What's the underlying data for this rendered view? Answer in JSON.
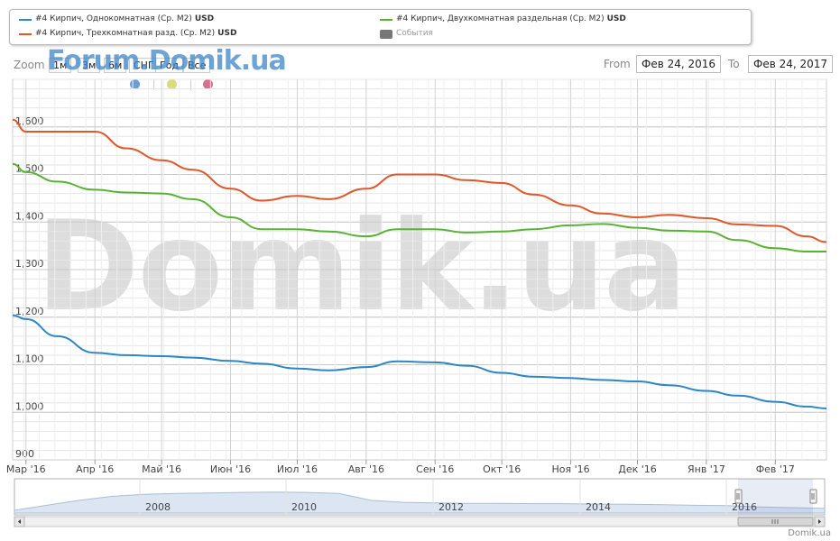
{
  "legend": [
    {
      "label": "#4 Кирпич, Однокомнатная (Ср. M2)",
      "unit": "USD",
      "color": "#2f86c4"
    },
    {
      "label": "#4 Кирпич, Двухкомнатная раздельная (Ср. M2)",
      "unit": "USD",
      "color": "#5ab235"
    },
    {
      "label": "#4 Кирпич, Трехкомнатная разд. (Ср. M2)",
      "unit": "USD",
      "color": "#e0572a"
    },
    {
      "label": "События",
      "unit": "",
      "color": "#777777"
    }
  ],
  "zoom": {
    "label": "Zoom",
    "buttons": [
      "1м",
      "3м",
      "6м",
      "СНГ",
      "Год",
      "Все"
    ]
  },
  "watermark_small": "Forum.Domik.ua",
  "watermark_big": "Domik.ua",
  "range": {
    "from_label": "From",
    "from_value": "Фев 24, 2016",
    "to_label": "To",
    "to_value": "Фев 24, 2017"
  },
  "markers": [
    {
      "color": "#6a9fd4"
    },
    {
      "color": "#d8dc7a"
    },
    {
      "color": "#d97090"
    }
  ],
  "credit": "Domik.ua",
  "chart_data": {
    "type": "line",
    "ylim": [
      900,
      1700
    ],
    "yticks": [
      900,
      1000,
      1100,
      1200,
      1300,
      1400,
      1500,
      1600
    ],
    "ytick_labels": [
      "900",
      "1,000",
      "1,100",
      "1,200",
      "1,300",
      "1,400",
      "1,500",
      "1,600"
    ],
    "xtick_labels": [
      "Мар '16",
      "Апр '16",
      "Май '16",
      "Июн '16",
      "Июл '16",
      "Авг '16",
      "Сен '16",
      "Окт '16",
      "Ноя '16",
      "Дек '16",
      "Янв '17",
      "Фев '17"
    ],
    "x": [
      "2016-02-24",
      "2016-03-01",
      "2016-03-15",
      "2016-04-01",
      "2016-04-15",
      "2016-05-01",
      "2016-05-15",
      "2016-06-01",
      "2016-06-15",
      "2016-07-01",
      "2016-07-15",
      "2016-08-01",
      "2016-08-15",
      "2016-09-01",
      "2016-09-15",
      "2016-10-01",
      "2016-10-15",
      "2016-11-01",
      "2016-11-15",
      "2016-12-01",
      "2016-12-15",
      "2017-01-01",
      "2017-01-15",
      "2017-02-01",
      "2017-02-15",
      "2017-02-24"
    ],
    "series": [
      {
        "name": "#4 Кирпич, Однокомнатная (Ср. M2)",
        "color": "#2f86c4",
        "values": [
          1204,
          1196,
          1160,
          1125,
          1120,
          1118,
          1115,
          1108,
          1102,
          1092,
          1088,
          1095,
          1107,
          1105,
          1098,
          1083,
          1075,
          1072,
          1068,
          1065,
          1057,
          1045,
          1035,
          1022,
          1012,
          1008
        ]
      },
      {
        "name": "#4 Кирпич, Двухкомнатная раздельная (Ср. M2)",
        "color": "#5ab235",
        "values": [
          1522,
          1505,
          1485,
          1468,
          1462,
          1460,
          1448,
          1410,
          1385,
          1385,
          1380,
          1370,
          1385,
          1385,
          1378,
          1380,
          1385,
          1393,
          1396,
          1388,
          1382,
          1380,
          1362,
          1345,
          1338,
          1338
        ]
      },
      {
        "name": "#4 Кирпич, Трехкомнатная разд. (Ср. M2)",
        "color": "#e0572a",
        "values": [
          1615,
          1590,
          1590,
          1590,
          1555,
          1530,
          1510,
          1470,
          1445,
          1455,
          1448,
          1470,
          1500,
          1500,
          1488,
          1482,
          1458,
          1435,
          1418,
          1410,
          1415,
          1408,
          1395,
          1392,
          1370,
          1358
        ]
      }
    ]
  },
  "navigator": {
    "year_labels": [
      "2008",
      "2010",
      "2012",
      "2014",
      "2016"
    ],
    "values": [
      0.05,
      0.3,
      0.55,
      0.75,
      0.85,
      0.9,
      0.92,
      0.95,
      0.97,
      0.95,
      0.9,
      0.55,
      0.45,
      0.42,
      0.4,
      0.4,
      0.38,
      0.38,
      0.36,
      0.35,
      0.33,
      0.3,
      0.28,
      0.22,
      0.18,
      0.15
    ]
  }
}
